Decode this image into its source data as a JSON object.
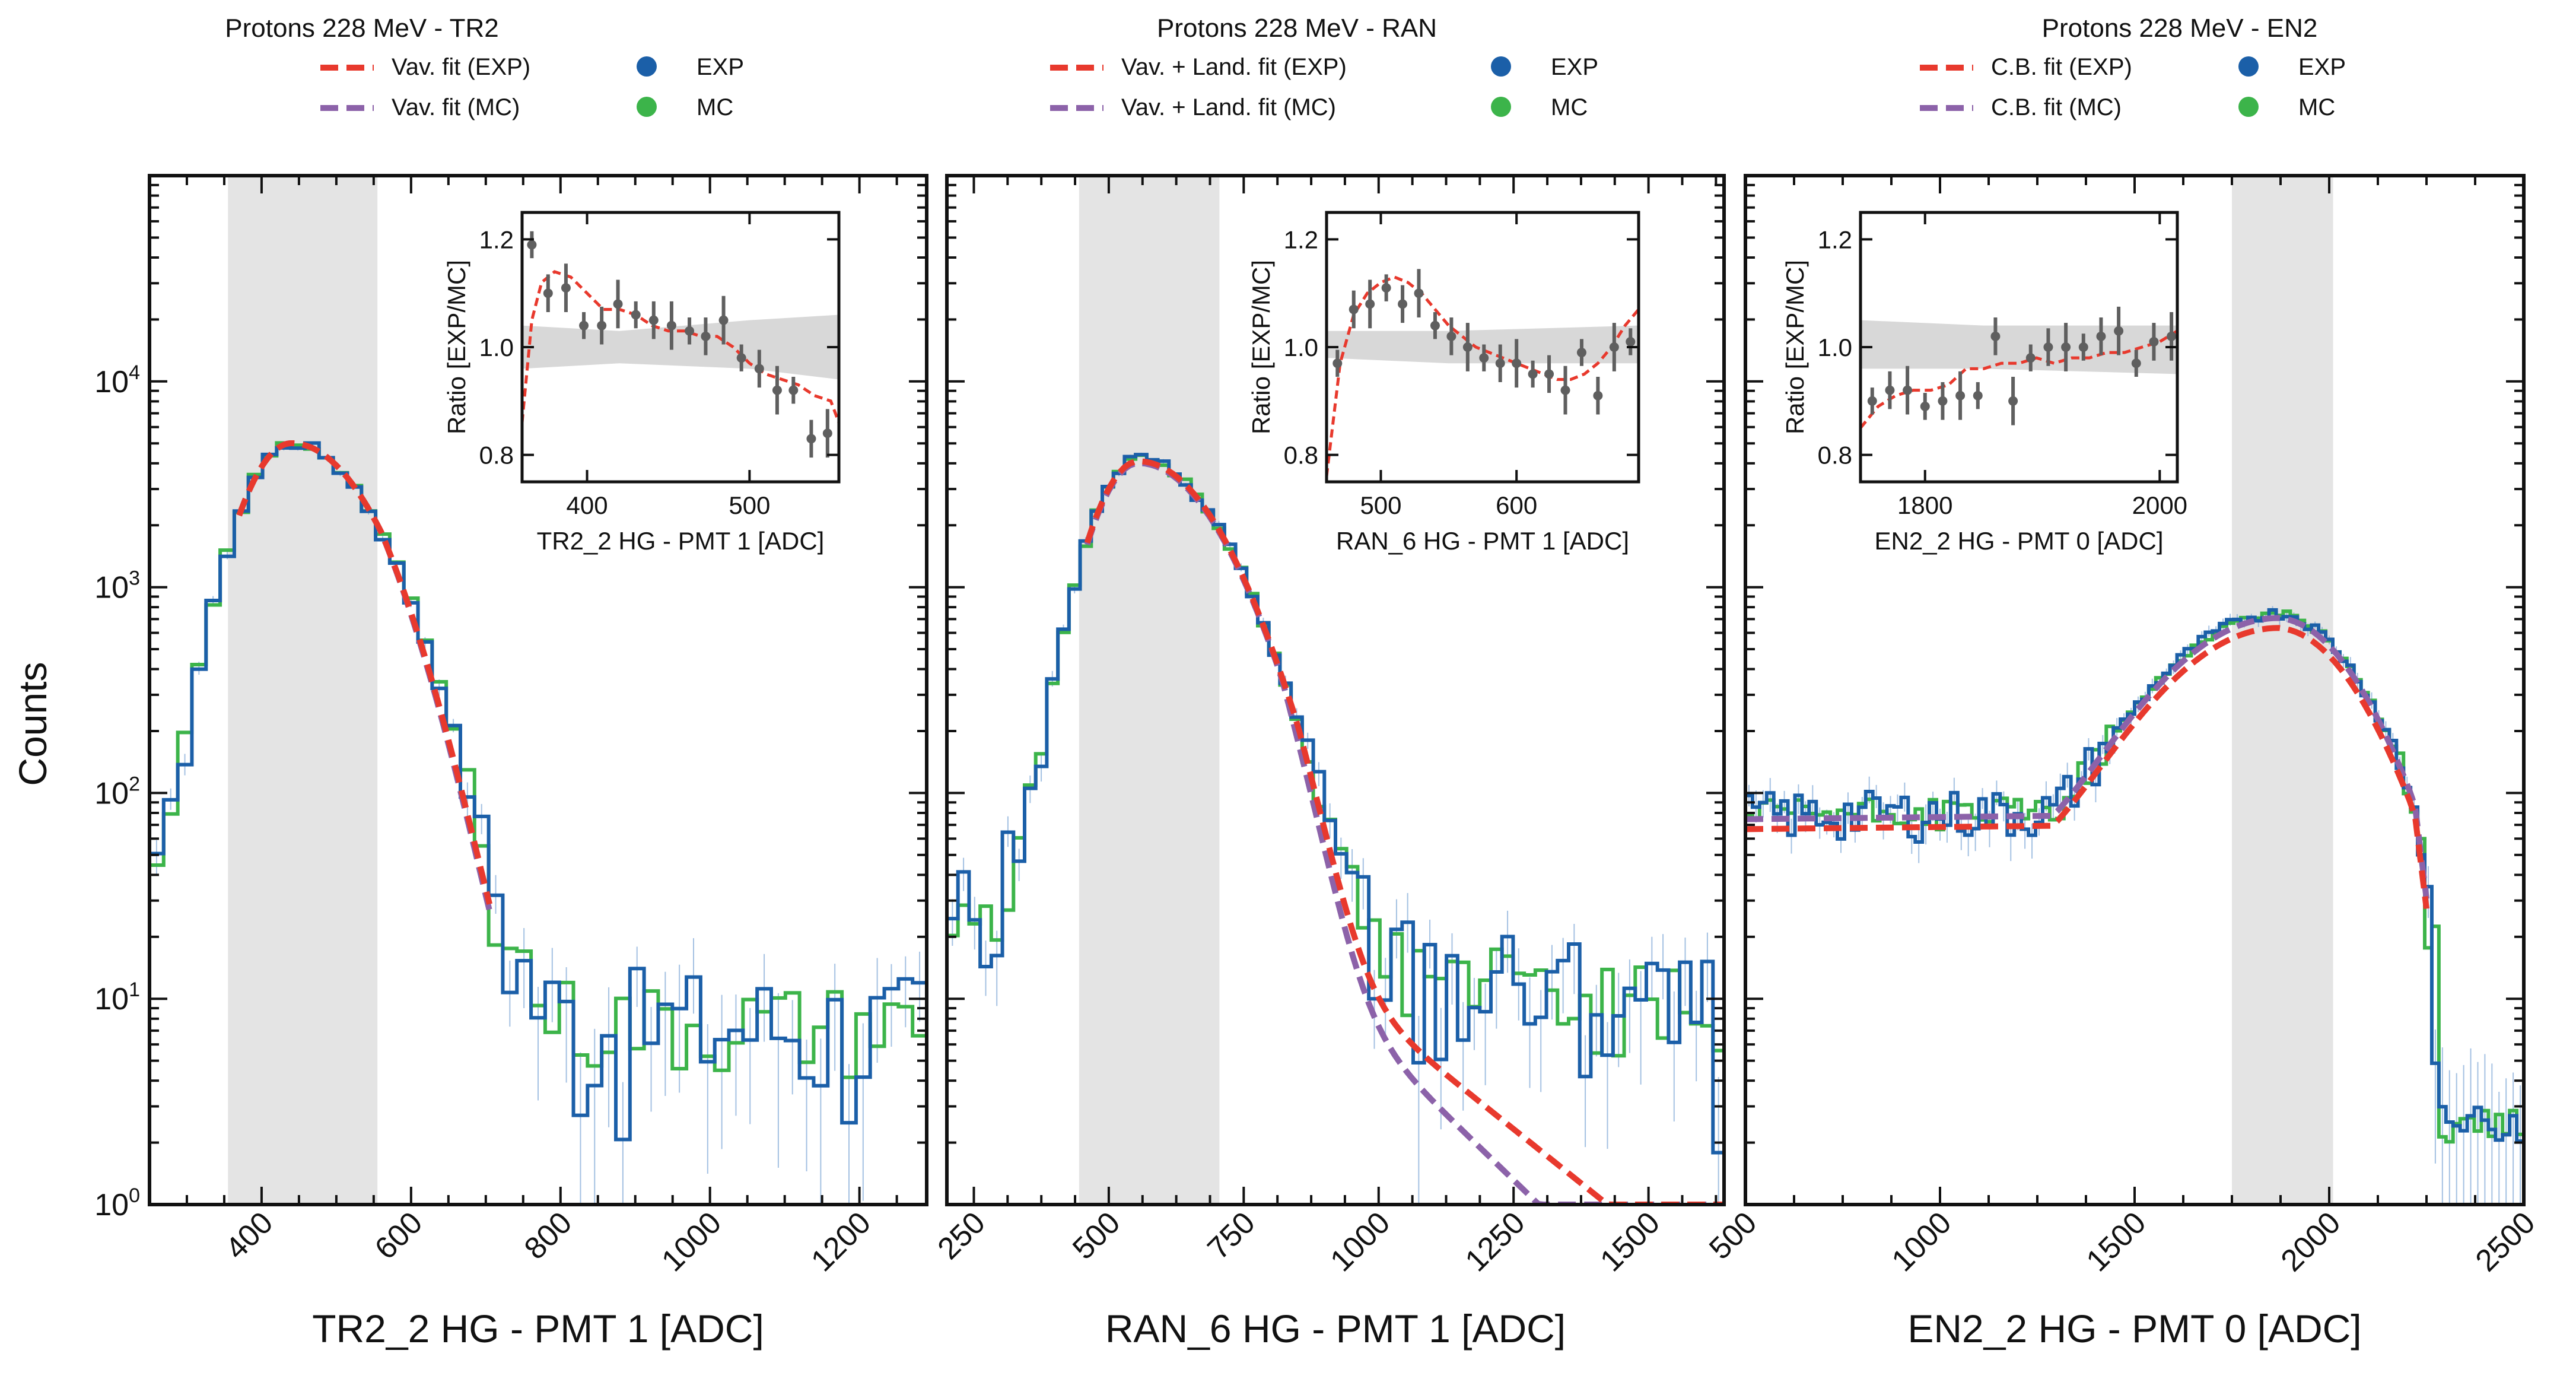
{
  "figure": {
    "ylabel": "Counts",
    "ytick_labels": [
      "10^0",
      "10^1",
      "10^2",
      "10^3",
      "10^4"
    ]
  },
  "colors": {
    "exp_fit": "#e8392d",
    "mc_fit": "#8c62a9",
    "exp": "#1b5fa8",
    "mc": "#3cb44a",
    "band": "#e4e4e4",
    "ratio_points": "#5f5f5f"
  },
  "chart_data": [
    {
      "type": "line",
      "title": "Protons 228 MeV - TR2",
      "xlabel": "TR2_2 HG - PMT 1 [ADC]",
      "ylabel": "Counts",
      "yscale": "log",
      "xlim": [
        250,
        1290
      ],
      "ylim": [
        1,
        100000
      ],
      "xticks": [
        400,
        600,
        800,
        1000,
        1200
      ],
      "shaded_region": [
        355,
        555
      ],
      "legend": [
        "Vav. fit (EXP)",
        "Vav. fit (MC)",
        "EXP",
        "MC"
      ],
      "peak": {
        "x": 440,
        "y": 5000,
        "sl": 55,
        "sr": 85,
        "kind": "gauss"
      },
      "tail": {
        "base": 8,
        "slope": 0.00012,
        "start": 700
      },
      "bins": 55,
      "fit_range": [
        370,
        705
      ],
      "inset": {
        "xlabel": "TR2_2 HG - PMT 1 [ADC]",
        "ylabel": "Ratio [EXP/MC]",
        "xlim": [
          360,
          555
        ],
        "ylim": [
          0.75,
          1.25
        ],
        "xticks": [
          400,
          500
        ],
        "yticks": [
          "0.8",
          "1.0",
          "1.2"
        ],
        "band": [
          [
            360,
            0.96,
            1.04
          ],
          [
            420,
            0.97,
            1.03
          ],
          [
            500,
            0.96,
            1.05
          ],
          [
            555,
            0.94,
            1.06
          ]
        ],
        "x": [
          366,
          376,
          387,
          398,
          409,
          419,
          430,
          441,
          452,
          463,
          473,
          484,
          495,
          506,
          517,
          527,
          538,
          548
        ],
        "y": [
          1.19,
          1.1,
          1.11,
          1.04,
          1.04,
          1.08,
          1.06,
          1.05,
          1.04,
          1.03,
          1.02,
          1.05,
          0.98,
          0.96,
          0.92,
          0.92,
          0.83,
          0.84
        ],
        "fit_x": [
          360,
          366,
          372,
          380,
          390,
          400,
          410,
          420,
          430,
          440,
          450,
          460,
          470,
          480,
          490,
          500,
          510,
          520,
          530,
          540,
          550,
          555
        ],
        "fit_y": [
          0.86,
          1.05,
          1.12,
          1.14,
          1.13,
          1.1,
          1.07,
          1.07,
          1.06,
          1.04,
          1.03,
          1.03,
          1.02,
          1.02,
          1.0,
          0.97,
          0.95,
          0.94,
          0.93,
          0.91,
          0.9,
          0.86
        ]
      }
    },
    {
      "type": "line",
      "title": "Protons 228 MeV - RAN",
      "xlabel": "RAN_6 HG - PMT 1 [ADC]",
      "ylabel": "",
      "yscale": "log",
      "xlim": [
        200,
        1640
      ],
      "ylim": [
        1,
        100000
      ],
      "xticks": [
        250,
        500,
        750,
        1000,
        1250,
        1500
      ],
      "shaded_region": [
        445,
        705
      ],
      "legend": [
        "Vav. + Land. fit (EXP)",
        "Vav. + Land. fit (MC)",
        "EXP",
        "MC"
      ],
      "peak": {
        "x": 555,
        "y": 4200,
        "sl": 70,
        "sr": 120,
        "kind": "gauss"
      },
      "tail": {
        "base": 16,
        "slope": 0.00085,
        "start": 900
      },
      "bins": 70,
      "fit_range": [
        460,
        1640
      ],
      "inset": {
        "xlabel": "RAN_6 HG - PMT 1 [ADC]",
        "ylabel": "Ratio [EXP/MC]",
        "xlim": [
          460,
          690
        ],
        "ylim": [
          0.75,
          1.25
        ],
        "xticks": [
          500,
          600
        ],
        "yticks": [
          "0.8",
          "1.0",
          "1.2"
        ],
        "band": [
          [
            460,
            0.98,
            1.03
          ],
          [
            550,
            0.97,
            1.03
          ],
          [
            690,
            0.97,
            1.04
          ]
        ],
        "x": [
          468,
          480,
          492,
          504,
          516,
          528,
          540,
          552,
          564,
          576,
          588,
          600,
          612,
          624,
          636,
          648,
          660,
          672,
          684
        ],
        "y": [
          0.97,
          1.07,
          1.08,
          1.11,
          1.08,
          1.1,
          1.04,
          1.02,
          1.0,
          0.98,
          0.97,
          0.97,
          0.95,
          0.95,
          0.92,
          0.99,
          0.91,
          1.0,
          1.01
        ],
        "fit_x": [
          460,
          470,
          480,
          490,
          500,
          510,
          520,
          530,
          540,
          550,
          560,
          570,
          580,
          590,
          600,
          610,
          620,
          630,
          640,
          650,
          660,
          670,
          680,
          690
        ],
        "fit_y": [
          0.76,
          0.97,
          1.06,
          1.1,
          1.12,
          1.13,
          1.12,
          1.1,
          1.07,
          1.04,
          1.02,
          1.0,
          0.99,
          0.98,
          0.97,
          0.96,
          0.95,
          0.94,
          0.94,
          0.95,
          0.97,
          1.0,
          1.04,
          1.07
        ]
      }
    },
    {
      "type": "line",
      "title": "Protons 228 MeV - EN2",
      "xlabel": "EN2_2 HG - PMT 0 [ADC]",
      "ylabel": "",
      "yscale": "log",
      "xlim": [
        500,
        2500
      ],
      "ylim": [
        1,
        100000
      ],
      "xticks": [
        500,
        1000,
        1500,
        2000,
        2500
      ],
      "shaded_region": [
        1750,
        2010
      ],
      "legend": [
        "C.B. fit (EXP)",
        "C.B. fit (MC)",
        "EXP",
        "MC"
      ],
      "peak": {
        "x": 1870,
        "y": 700,
        "sl": 240,
        "sr": 170,
        "kind": "cb",
        "low": 38
      },
      "tail": {
        "base": 2.5,
        "slope": 0,
        "start": 2250
      },
      "bins": 110,
      "fit_range": [
        500,
        2250
      ],
      "inset": {
        "xlabel": "EN2_2 HG - PMT 0 [ADC]",
        "ylabel": "Ratio [EXP/MC]",
        "xlim": [
          1745,
          2015
        ],
        "ylim": [
          0.75,
          1.25
        ],
        "xticks": [
          1800,
          2000
        ],
        "yticks": [
          "0.8",
          "1.0",
          "1.2"
        ],
        "band": [
          [
            1745,
            0.96,
            1.05
          ],
          [
            1850,
            0.96,
            1.04
          ],
          [
            2015,
            0.95,
            1.04
          ]
        ],
        "x": [
          1755,
          1770,
          1785,
          1800,
          1815,
          1830,
          1845,
          1860,
          1875,
          1890,
          1905,
          1920,
          1935,
          1950,
          1965,
          1980,
          1995,
          2010
        ],
        "y": [
          0.9,
          0.92,
          0.92,
          0.89,
          0.9,
          0.91,
          0.91,
          1.02,
          0.9,
          0.98,
          1.0,
          1.0,
          1.0,
          1.02,
          1.03,
          0.97,
          1.01,
          1.02
        ],
        "fit_x": [
          1745,
          1760,
          1775,
          1790,
          1805,
          1820,
          1835,
          1850,
          1865,
          1880,
          1895,
          1910,
          1925,
          1940,
          1955,
          1970,
          1985,
          2000,
          2015
        ],
        "fit_y": [
          0.85,
          0.89,
          0.91,
          0.92,
          0.92,
          0.93,
          0.96,
          0.96,
          0.97,
          0.97,
          0.98,
          0.97,
          0.98,
          0.98,
          0.99,
          0.99,
          1.0,
          1.01,
          1.03
        ]
      }
    }
  ]
}
